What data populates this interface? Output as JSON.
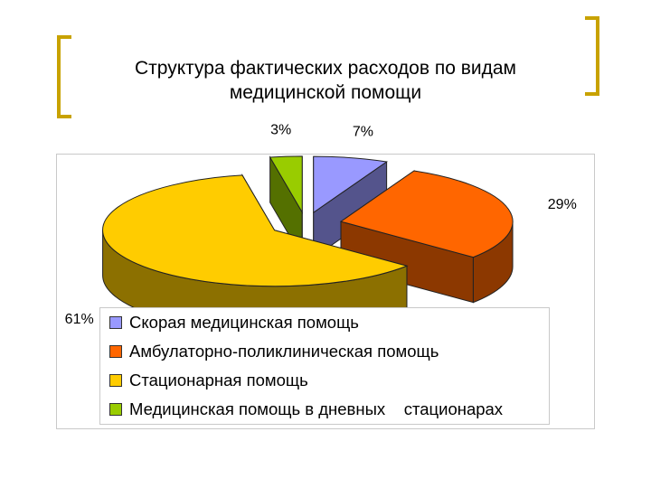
{
  "slide": {
    "title_lines": [
      "Структура фактических расходов по видам",
      "медицинской помощи"
    ],
    "accent_color": "#c8a200"
  },
  "chart_data": {
    "type": "pie",
    "style": "3d-exploded",
    "title": "",
    "series": [
      {
        "name": "Скорая медицинская помощь",
        "value": 7,
        "label": "7%",
        "color": "#9999ff"
      },
      {
        "name": "Амбулаторно-поликлиническая помощь",
        "value": 29,
        "label": "29%",
        "color": "#ff6600"
      },
      {
        "name": "Стационарная помощь",
        "value": 61,
        "label": "61%",
        "color": "#ffcc00"
      },
      {
        "name": "Медицинская помощь в дневных    стационарах",
        "value": 3,
        "label": "3%",
        "color": "#99cc00"
      }
    ],
    "legend": {
      "position": "bottom"
    }
  }
}
